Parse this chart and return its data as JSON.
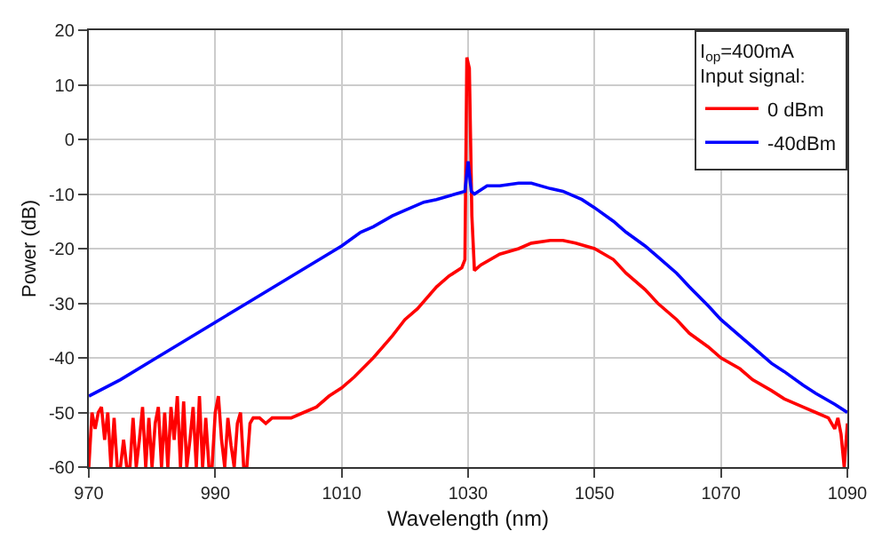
{
  "chart_data": {
    "type": "line",
    "xlabel": "Wavelength (nm)",
    "ylabel": "Power (dB)",
    "legend_title": "I$_{op}$=400mA\nInput signal:",
    "xlim": [
      970,
      1090
    ],
    "ylim": [
      -60,
      20
    ],
    "xticks": [
      970,
      990,
      1010,
      1030,
      1050,
      1070,
      1090
    ],
    "yticks": [
      -60,
      -50,
      -40,
      -30,
      -20,
      -10,
      0,
      10,
      20
    ],
    "grid": true,
    "legend": "top right",
    "marker": "none",
    "line_style": "solid",
    "series": [
      {
        "name": "0 dBm",
        "color": "#ff0000",
        "x": [
          970,
          970.5,
          971,
          971.5,
          972,
          972.5,
          973,
          973.5,
          974,
          974.5,
          975,
          975.5,
          976,
          976.5,
          977,
          977.5,
          978,
          978.5,
          979,
          979.5,
          980,
          980.5,
          981,
          981.5,
          982,
          982.5,
          983,
          983.5,
          984,
          984.5,
          985,
          985.5,
          986,
          986.5,
          987,
          987.5,
          988,
          988.5,
          989,
          989.5,
          990,
          990.5,
          991,
          991.5,
          992,
          992.5,
          993,
          993.5,
          994,
          994.5,
          995,
          995.5,
          996,
          997,
          998,
          999,
          1000,
          1002,
          1004,
          1006,
          1008,
          1010,
          1012,
          1015,
          1018,
          1020,
          1022,
          1025,
          1027,
          1029,
          1029.5,
          1029.8,
          1030.2,
          1030.6,
          1031,
          1032,
          1035,
          1038,
          1040,
          1043,
          1045,
          1047,
          1050,
          1053,
          1055,
          1058,
          1060,
          1063,
          1065,
          1068,
          1070,
          1073,
          1075,
          1078,
          1080,
          1083,
          1085,
          1087,
          1088,
          1088.5,
          1089,
          1089.5,
          1090
        ],
        "values": [
          -60,
          -50,
          -53,
          -50,
          -49,
          -55,
          -50,
          -60,
          -51,
          -60,
          -60,
          -55,
          -60,
          -60,
          -51,
          -60,
          -55,
          -49,
          -60,
          -51,
          -60,
          -52,
          -49,
          -60,
          -50,
          -60,
          -49,
          -55,
          -47,
          -60,
          -48,
          -60,
          -55,
          -49,
          -60,
          -47,
          -60,
          -51,
          -60,
          -60,
          -50,
          -47,
          -55,
          -60,
          -51,
          -56,
          -60,
          -52,
          -50,
          -60,
          -60,
          -52,
          -51,
          -51,
          -52,
          -51,
          -51,
          -51,
          -50,
          -49,
          -47,
          -45.5,
          -43.5,
          -40,
          -36,
          -33,
          -31,
          -27,
          -25,
          -23.5,
          -22,
          15,
          13,
          -14,
          -24,
          -23,
          -21,
          -20,
          -19,
          -18.5,
          -18.5,
          -19,
          -20,
          -22,
          -24.5,
          -27.5,
          -30,
          -33,
          -35.5,
          -38,
          -40,
          -42,
          -44,
          -46,
          -47.5,
          -49,
          -50,
          -51,
          -53,
          -51,
          -54,
          -60,
          -52
        ]
      },
      {
        "name": "-40dBm",
        "color": "#0000ff",
        "x": [
          970,
          975,
          980,
          985,
          990,
          995,
          1000,
          1005,
          1010,
          1013,
          1015,
          1018,
          1020,
          1023,
          1025,
          1028,
          1029.5,
          1030,
          1030.5,
          1031,
          1033,
          1035,
          1038,
          1040,
          1043,
          1045,
          1048,
          1050,
          1053,
          1055,
          1058,
          1060,
          1063,
          1065,
          1068,
          1070,
          1073,
          1075,
          1078,
          1080,
          1083,
          1085,
          1088,
          1090
        ],
        "values": [
          -47,
          -44,
          -40.5,
          -37,
          -33.5,
          -30,
          -26.5,
          -23,
          -19.5,
          -17,
          -16,
          -14,
          -13,
          -11.5,
          -11,
          -10,
          -9.5,
          -4,
          -9.5,
          -10,
          -8.5,
          -8.5,
          -8,
          -8,
          -9,
          -9.5,
          -11,
          -12.5,
          -15,
          -17,
          -19.5,
          -21.5,
          -24.5,
          -27,
          -30.5,
          -33,
          -36,
          -38,
          -41,
          -42.5,
          -45,
          -46.5,
          -48.5,
          -50
        ]
      }
    ]
  }
}
